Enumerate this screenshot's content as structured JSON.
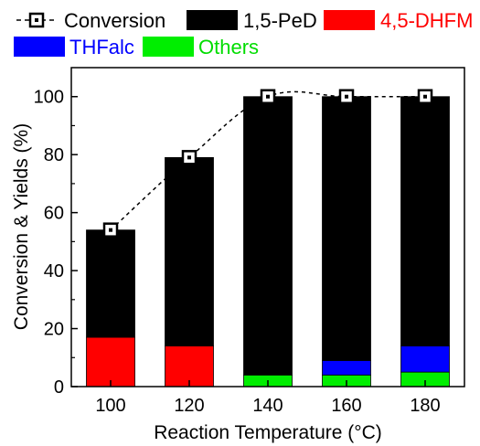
{
  "chart_data": {
    "type": "bar",
    "stacked": true,
    "title": "",
    "xlabel": "Reaction Temperature (°C)",
    "ylabel": "Conversion & Yields (%)",
    "categories": [
      "100",
      "120",
      "140",
      "160",
      "180"
    ],
    "ylim": [
      0,
      110
    ],
    "yticks": [
      "0",
      "20",
      "40",
      "60",
      "80",
      "100"
    ],
    "grid": false,
    "legend_position": "top",
    "series": [
      {
        "name": "Others",
        "color": "#00ee00",
        "values": [
          0,
          0,
          4,
          4,
          5
        ]
      },
      {
        "name": "THFalc",
        "color": "#0000ff",
        "values": [
          0,
          0,
          0,
          5,
          9
        ]
      },
      {
        "name": "4,5-DHFM",
        "color": "#ff0000",
        "values": [
          17,
          14,
          0,
          0,
          0
        ]
      },
      {
        "name": "1,5-PeD",
        "color": "#000000",
        "values": [
          37,
          65,
          96,
          91,
          86
        ]
      }
    ],
    "line_series": {
      "name": "Conversion",
      "style": "dashed line with open square markers",
      "values": [
        54,
        79,
        100,
        100,
        100
      ]
    },
    "legend_text_colors": {
      "THFalc": "#0000ff",
      "4,5-DHFM": "#ff0000",
      "Others": "#00dd00"
    }
  }
}
